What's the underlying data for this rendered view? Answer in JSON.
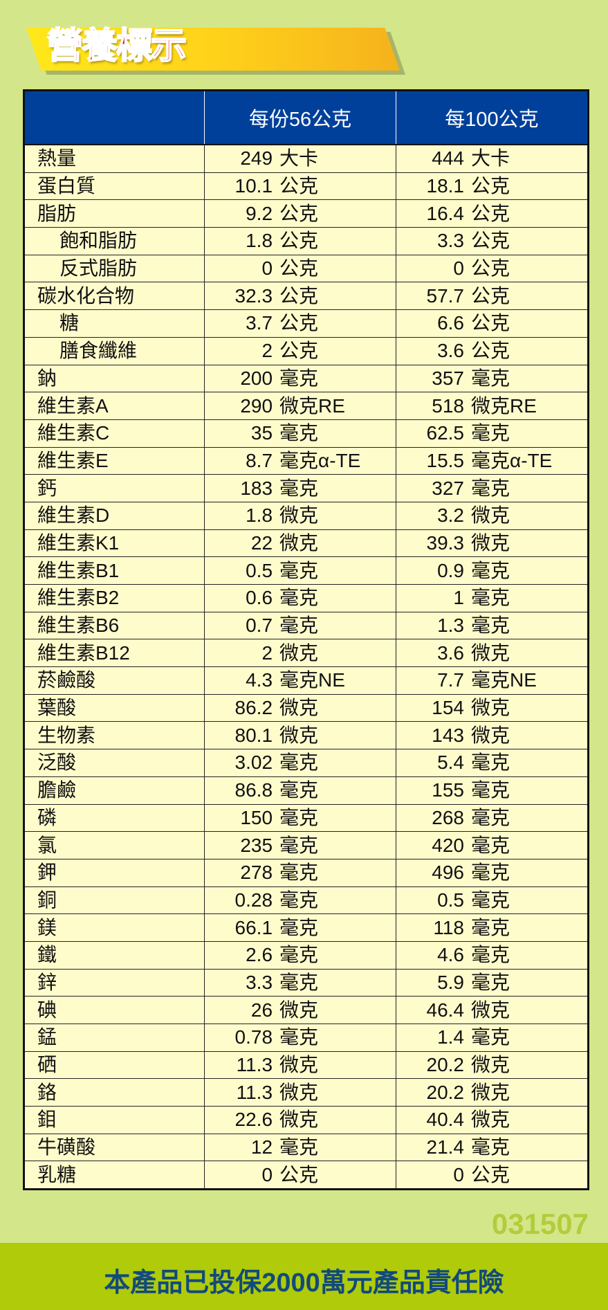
{
  "title": "營養標示",
  "table": {
    "headers": [
      "",
      "每份56公克",
      "每100公克"
    ],
    "rows": [
      {
        "label": "熱量",
        "sub": false,
        "per_serving": [
          "249",
          "大卡"
        ],
        "per_100g": [
          "444",
          "大卡"
        ]
      },
      {
        "label": "蛋白質",
        "sub": false,
        "per_serving": [
          "10.1",
          "公克"
        ],
        "per_100g": [
          "18.1",
          "公克"
        ]
      },
      {
        "label": "脂肪",
        "sub": false,
        "per_serving": [
          "9.2",
          "公克"
        ],
        "per_100g": [
          "16.4",
          "公克"
        ]
      },
      {
        "label": "飽和脂肪",
        "sub": true,
        "per_serving": [
          "1.8",
          "公克"
        ],
        "per_100g": [
          "3.3",
          "公克"
        ]
      },
      {
        "label": "反式脂肪",
        "sub": true,
        "per_serving": [
          "0",
          "公克"
        ],
        "per_100g": [
          "0",
          "公克"
        ]
      },
      {
        "label": "碳水化合物",
        "sub": false,
        "per_serving": [
          "32.3",
          "公克"
        ],
        "per_100g": [
          "57.7",
          "公克"
        ]
      },
      {
        "label": "糖",
        "sub": true,
        "per_serving": [
          "3.7",
          "公克"
        ],
        "per_100g": [
          "6.6",
          "公克"
        ]
      },
      {
        "label": "膳食纖維",
        "sub": true,
        "per_serving": [
          "2",
          "公克"
        ],
        "per_100g": [
          "3.6",
          "公克"
        ]
      },
      {
        "label": "鈉",
        "sub": false,
        "per_serving": [
          "200",
          "毫克"
        ],
        "per_100g": [
          "357",
          "毫克"
        ]
      },
      {
        "label": "維生素A",
        "sub": false,
        "per_serving": [
          "290",
          "微克RE"
        ],
        "per_100g": [
          "518",
          "微克RE"
        ]
      },
      {
        "label": "維生素C",
        "sub": false,
        "per_serving": [
          "35",
          "毫克"
        ],
        "per_100g": [
          "62.5",
          "毫克"
        ]
      },
      {
        "label": "維生素E",
        "sub": false,
        "per_serving": [
          "8.7",
          "毫克α-TE"
        ],
        "per_100g": [
          "15.5",
          "毫克α-TE"
        ]
      },
      {
        "label": "鈣",
        "sub": false,
        "per_serving": [
          "183",
          "毫克"
        ],
        "per_100g": [
          "327",
          "毫克"
        ]
      },
      {
        "label": "維生素D",
        "sub": false,
        "per_serving": [
          "1.8",
          "微克"
        ],
        "per_100g": [
          "3.2",
          "微克"
        ]
      },
      {
        "label": "維生素K1",
        "sub": false,
        "per_serving": [
          "22",
          "微克"
        ],
        "per_100g": [
          "39.3",
          "微克"
        ]
      },
      {
        "label": "維生素B1",
        "sub": false,
        "per_serving": [
          "0.5",
          "毫克"
        ],
        "per_100g": [
          "0.9",
          "毫克"
        ]
      },
      {
        "label": "維生素B2",
        "sub": false,
        "per_serving": [
          "0.6",
          "毫克"
        ],
        "per_100g": [
          "1",
          "毫克"
        ]
      },
      {
        "label": "維生素B6",
        "sub": false,
        "per_serving": [
          "0.7",
          "毫克"
        ],
        "per_100g": [
          "1.3",
          "毫克"
        ]
      },
      {
        "label": "維生素B12",
        "sub": false,
        "per_serving": [
          "2",
          "微克"
        ],
        "per_100g": [
          "3.6",
          "微克"
        ]
      },
      {
        "label": "菸鹼酸",
        "sub": false,
        "per_serving": [
          "4.3",
          "毫克NE"
        ],
        "per_100g": [
          "7.7",
          "毫克NE"
        ]
      },
      {
        "label": "葉酸",
        "sub": false,
        "per_serving": [
          "86.2",
          "微克"
        ],
        "per_100g": [
          "154",
          "微克"
        ]
      },
      {
        "label": "生物素",
        "sub": false,
        "per_serving": [
          "80.1",
          "微克"
        ],
        "per_100g": [
          "143",
          "微克"
        ]
      },
      {
        "label": "泛酸",
        "sub": false,
        "per_serving": [
          "3.02",
          "毫克"
        ],
        "per_100g": [
          "5.4",
          "毫克"
        ]
      },
      {
        "label": "膽鹼",
        "sub": false,
        "per_serving": [
          "86.8",
          "毫克"
        ],
        "per_100g": [
          "155",
          "毫克"
        ]
      },
      {
        "label": "磷",
        "sub": false,
        "per_serving": [
          "150",
          "毫克"
        ],
        "per_100g": [
          "268",
          "毫克"
        ]
      },
      {
        "label": "氯",
        "sub": false,
        "per_serving": [
          "235",
          "毫克"
        ],
        "per_100g": [
          "420",
          "毫克"
        ]
      },
      {
        "label": "鉀",
        "sub": false,
        "per_serving": [
          "278",
          "毫克"
        ],
        "per_100g": [
          "496",
          "毫克"
        ]
      },
      {
        "label": "銅",
        "sub": false,
        "per_serving": [
          "0.28",
          "毫克"
        ],
        "per_100g": [
          "0.5",
          "毫克"
        ]
      },
      {
        "label": "鎂",
        "sub": false,
        "per_serving": [
          "66.1",
          "毫克"
        ],
        "per_100g": [
          "118",
          "毫克"
        ]
      },
      {
        "label": "鐵",
        "sub": false,
        "per_serving": [
          "2.6",
          "毫克"
        ],
        "per_100g": [
          "4.6",
          "毫克"
        ]
      },
      {
        "label": "鋅",
        "sub": false,
        "per_serving": [
          "3.3",
          "毫克"
        ],
        "per_100g": [
          "5.9",
          "毫克"
        ]
      },
      {
        "label": "碘",
        "sub": false,
        "per_serving": [
          "26",
          "微克"
        ],
        "per_100g": [
          "46.4",
          "微克"
        ]
      },
      {
        "label": "錳",
        "sub": false,
        "per_serving": [
          "0.78",
          "毫克"
        ],
        "per_100g": [
          "1.4",
          "毫克"
        ]
      },
      {
        "label": "硒",
        "sub": false,
        "per_serving": [
          "11.3",
          "微克"
        ],
        "per_100g": [
          "20.2",
          "微克"
        ]
      },
      {
        "label": "鉻",
        "sub": false,
        "per_serving": [
          "11.3",
          "微克"
        ],
        "per_100g": [
          "20.2",
          "微克"
        ]
      },
      {
        "label": "鉬",
        "sub": false,
        "per_serving": [
          "22.6",
          "微克"
        ],
        "per_100g": [
          "40.4",
          "微克"
        ]
      },
      {
        "label": "牛磺酸",
        "sub": false,
        "per_serving": [
          "12",
          "毫克"
        ],
        "per_100g": [
          "21.4",
          "毫克"
        ]
      },
      {
        "label": "乳糖",
        "sub": false,
        "per_serving": [
          "0",
          "公克"
        ],
        "per_100g": [
          "0",
          "公克"
        ]
      }
    ]
  },
  "code": "031507",
  "footer": "本產品已投保2000萬元產品責任險",
  "colors": {
    "background": "#d4e68a",
    "header": "#00409a",
    "cell": "#fffccc",
    "title": "#e2001a",
    "footer_band": "#afcb0a",
    "footer_text": "#124a7c"
  }
}
